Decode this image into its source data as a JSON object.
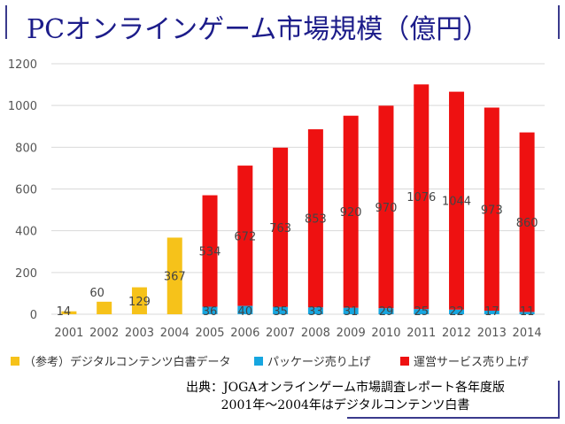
{
  "title": "PCオンラインゲーム市場規模（億円）",
  "colors": {
    "digital": "#f6c21a",
    "package": "#16a6e0",
    "service": "#ee1111",
    "title": "#1c1c8a"
  },
  "chart_data": {
    "type": "bar",
    "stacked": true,
    "categories": [
      "2001",
      "2002",
      "2003",
      "2004",
      "2005",
      "2006",
      "2007",
      "2008",
      "2009",
      "2010",
      "2011",
      "2012",
      "2013",
      "2014"
    ],
    "ylim": [
      0,
      1200
    ],
    "yticks": [
      0,
      200,
      400,
      600,
      800,
      1000,
      1200
    ],
    "grid": true,
    "legend_position": "bottom",
    "series": [
      {
        "name": "（参考）デジタルコンテンツ白書データ",
        "color": "#f6c21a",
        "values": [
          14,
          60,
          129,
          367,
          null,
          null,
          null,
          null,
          null,
          null,
          null,
          null,
          null,
          null
        ]
      },
      {
        "name": "パッケージ売り上げ",
        "color": "#16a6e0",
        "values": [
          null,
          null,
          null,
          null,
          36,
          40,
          35,
          33,
          31,
          29,
          25,
          22,
          17,
          11
        ]
      },
      {
        "name": "運営サービス売り上げ",
        "color": "#ee1111",
        "values": [
          null,
          null,
          null,
          null,
          534,
          672,
          763,
          853,
          920,
          970,
          1076,
          1044,
          973,
          860
        ]
      }
    ]
  },
  "source": {
    "line1": "出典：JOGAオンラインゲーム市場調査レポート各年度版",
    "line2": "2001年～2004年はデジタルコンテンツ白書"
  }
}
